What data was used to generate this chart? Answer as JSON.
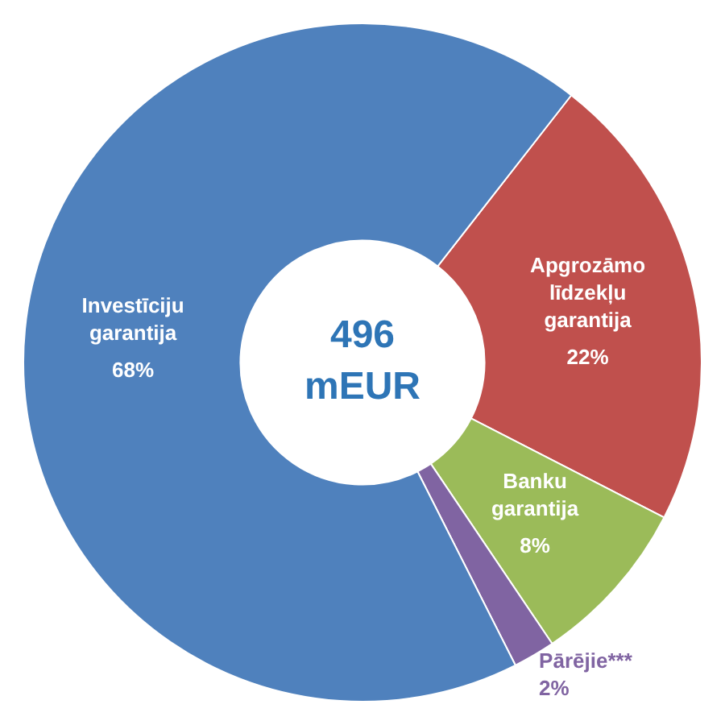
{
  "chart_data": {
    "type": "donut",
    "categories": [
      "Apgrozāmo līdzekļu garantija",
      "Banku garantija",
      "Pārējie***",
      "Investīciju garantija"
    ],
    "values": [
      22,
      8,
      2,
      68
    ],
    "colors": [
      "#c0504d",
      "#9bbb59",
      "#8064a2",
      "#4f81bd"
    ],
    "value_labels": [
      "22%",
      "8%",
      "2%",
      "68%"
    ],
    "annotations": [
      "496 mEUR"
    ],
    "legend": false
  }
}
